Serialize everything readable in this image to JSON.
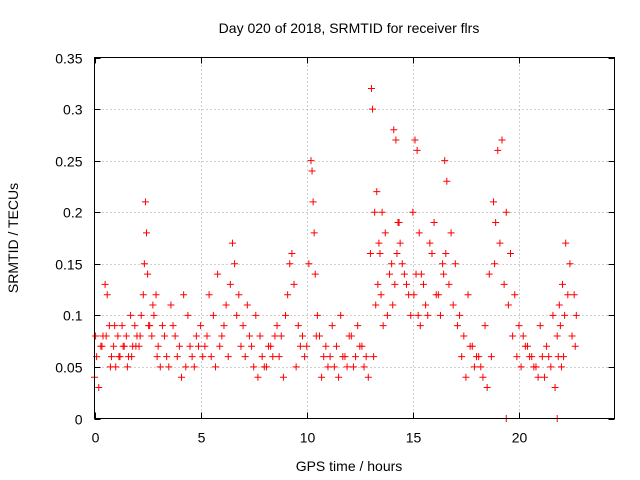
{
  "chart_data": {
    "type": "scatter",
    "title": "Day 020 of 2018, SRMTID for receiver flrs",
    "xlabel": "GPS time / hours",
    "ylabel": "SRMTID / TECUs",
    "xlim": [
      0,
      24.5
    ],
    "ylim": [
      0,
      0.35
    ],
    "x_ticks": [
      0,
      5,
      10,
      15,
      20
    ],
    "x_tick_labels": [
      "0",
      "5",
      "10",
      "15",
      "20"
    ],
    "y_ticks": [
      0,
      0.05,
      0.1,
      0.15,
      0.2,
      0.25,
      0.3,
      0.35
    ],
    "y_tick_labels": [
      "0",
      "0.05",
      "0.1",
      "0.15",
      "0.2",
      "0.25",
      "0.3",
      "0.35"
    ],
    "grid": true,
    "legend": "none",
    "marker": "+",
    "color": "#ff0000",
    "series": [
      {
        "values_note": "",
        "x": [
          0.0,
          0.1,
          0.2,
          0.3,
          0.4,
          0.5,
          0.6,
          0.7,
          0.8,
          0.9,
          1.0,
          1.1,
          1.2,
          1.3,
          1.4,
          1.5,
          1.6,
          1.7,
          1.8,
          1.9,
          2.0,
          2.1,
          2.2,
          2.3,
          2.35,
          2.4,
          2.45,
          2.5,
          2.6,
          2.7,
          2.8,
          2.9,
          3.0,
          3.2,
          3.4,
          3.6,
          3.8,
          4.0,
          4.2,
          4.4,
          4.6,
          4.8,
          5.0,
          5.2,
          5.4,
          5.6,
          5.8,
          6.0,
          6.2,
          6.4,
          6.5,
          6.6,
          6.7,
          6.8,
          7.0,
          7.2,
          7.4,
          7.6,
          7.8,
          8.0,
          8.2,
          8.4,
          8.6,
          8.8,
          9.0,
          9.1,
          9.2,
          9.3,
          9.4,
          9.6,
          9.8,
          10.0,
          10.1,
          10.2,
          10.25,
          10.3,
          10.35,
          10.4,
          10.5,
          10.6,
          10.8,
          11.0,
          11.2,
          11.4,
          11.6,
          11.8,
          12.0,
          12.2,
          12.4,
          12.6,
          12.8,
          12.9,
          13.0,
          13.05,
          13.1,
          13.2,
          13.3,
          13.4,
          13.5,
          13.6,
          13.8,
          14.0,
          14.1,
          14.2,
          14.3,
          14.4,
          14.6,
          14.8,
          15.0,
          15.1,
          15.2,
          15.3,
          15.4,
          15.6,
          15.8,
          16.0,
          16.2,
          16.4,
          16.5,
          16.6,
          16.8,
          17.0,
          17.2,
          17.4,
          17.6,
          17.8,
          18.0,
          18.2,
          18.4,
          18.6,
          18.8,
          18.9,
          19.0,
          19.2,
          19.4,
          19.6,
          19.8,
          20.0,
          20.2,
          20.4,
          20.6,
          20.8,
          21.0,
          21.2,
          21.4,
          21.6,
          21.8,
          21.9,
          22.0,
          22.1,
          22.2,
          22.4,
          22.6,
          22.7,
          0.05,
          0.35,
          0.55,
          0.75,
          0.95,
          1.15,
          1.35,
          1.55,
          1.75,
          1.95,
          2.15,
          2.55,
          2.75,
          2.95,
          3.1,
          3.3,
          3.5,
          3.7,
          3.9,
          4.1,
          4.3,
          4.5,
          4.7,
          4.9,
          5.1,
          5.3,
          5.5,
          5.7,
          5.9,
          6.1,
          6.3,
          6.9,
          7.1,
          7.3,
          7.5,
          7.7,
          7.9,
          8.1,
          8.3,
          8.5,
          8.7,
          8.9,
          9.5,
          9.7,
          9.9,
          10.45,
          10.7,
          10.9,
          11.1,
          11.3,
          11.5,
          11.7,
          11.9,
          12.1,
          12.3,
          12.5,
          12.7,
          13.15,
          13.25,
          13.35,
          13.45,
          13.55,
          13.7,
          13.9,
          14.05,
          14.15,
          14.25,
          14.35,
          14.5,
          14.7,
          14.9,
          15.05,
          15.15,
          15.25,
          15.35,
          15.5,
          15.7,
          15.9,
          16.1,
          16.3,
          16.45,
          16.55,
          16.7,
          16.9,
          17.1,
          17.3,
          17.5,
          17.7,
          17.9,
          18.1,
          18.3,
          18.5,
          18.7,
          18.85,
          19.1,
          19.3,
          19.5,
          19.7,
          19.9,
          20.1,
          20.3,
          20.5,
          20.7,
          20.9,
          21.1,
          21.3,
          21.5,
          21.7,
          21.85,
          21.95,
          22.05,
          22.15,
          22.3,
          22.5,
          22.65,
          19.4,
          21.8
        ],
        "y": [
          0.04,
          0.06,
          0.03,
          0.07,
          0.08,
          0.13,
          0.12,
          0.09,
          0.06,
          0.07,
          0.05,
          0.08,
          0.06,
          0.09,
          0.07,
          0.08,
          0.06,
          0.1,
          0.07,
          0.09,
          0.08,
          0.07,
          0.1,
          0.12,
          0.15,
          0.21,
          0.18,
          0.14,
          0.09,
          0.08,
          0.1,
          0.12,
          0.07,
          0.09,
          0.06,
          0.11,
          0.08,
          0.07,
          0.12,
          0.1,
          0.06,
          0.08,
          0.09,
          0.07,
          0.12,
          0.1,
          0.14,
          0.08,
          0.11,
          0.13,
          0.17,
          0.15,
          0.1,
          0.12,
          0.09,
          0.11,
          0.07,
          0.1,
          0.08,
          0.05,
          0.07,
          0.06,
          0.09,
          0.08,
          0.1,
          0.12,
          0.15,
          0.16,
          0.13,
          0.09,
          0.08,
          0.07,
          0.15,
          0.25,
          0.24,
          0.21,
          0.18,
          0.14,
          0.1,
          0.08,
          0.06,
          0.05,
          0.09,
          0.07,
          0.1,
          0.06,
          0.08,
          0.05,
          0.09,
          0.07,
          0.06,
          0.04,
          0.16,
          0.32,
          0.3,
          0.2,
          0.22,
          0.17,
          0.12,
          0.09,
          0.1,
          0.15,
          0.28,
          0.27,
          0.19,
          0.17,
          0.14,
          0.12,
          0.2,
          0.27,
          0.26,
          0.18,
          0.14,
          0.11,
          0.17,
          0.19,
          0.12,
          0.15,
          0.25,
          0.23,
          0.18,
          0.15,
          0.1,
          0.08,
          0.12,
          0.07,
          0.06,
          0.05,
          0.09,
          0.14,
          0.21,
          0.19,
          0.26,
          0.27,
          0.2,
          0.16,
          0.12,
          0.09,
          0.08,
          0.07,
          0.06,
          0.05,
          0.09,
          0.04,
          0.06,
          0.1,
          0.08,
          0.11,
          0.05,
          0.06,
          0.17,
          0.15,
          0.12,
          0.1,
          0.08,
          0.07,
          0.08,
          0.05,
          0.09,
          0.06,
          0.07,
          0.05,
          0.06,
          0.07,
          0.08,
          0.09,
          0.11,
          0.06,
          0.05,
          0.08,
          0.05,
          0.09,
          0.06,
          0.04,
          0.05,
          0.07,
          0.05,
          0.07,
          0.06,
          0.08,
          0.06,
          0.05,
          0.07,
          0.09,
          0.06,
          0.07,
          0.06,
          0.08,
          0.05,
          0.04,
          0.06,
          0.05,
          0.07,
          0.08,
          0.06,
          0.04,
          0.05,
          0.07,
          0.06,
          0.08,
          0.04,
          0.07,
          0.06,
          0.05,
          0.04,
          0.06,
          0.05,
          0.08,
          0.06,
          0.07,
          0.05,
          0.06,
          0.11,
          0.13,
          0.16,
          0.2,
          0.18,
          0.14,
          0.11,
          0.13,
          0.16,
          0.19,
          0.15,
          0.13,
          0.1,
          0.12,
          0.14,
          0.1,
          0.09,
          0.13,
          0.1,
          0.16,
          0.12,
          0.1,
          0.14,
          0.16,
          0.13,
          0.11,
          0.09,
          0.06,
          0.04,
          0.07,
          0.05,
          0.06,
          0.04,
          0.03,
          0.06,
          0.15,
          0.17,
          0.13,
          0.11,
          0.08,
          0.06,
          0.05,
          0.07,
          0.06,
          0.05,
          0.04,
          0.06,
          0.07,
          0.05,
          0.03,
          0.06,
          0.09,
          0.13,
          0.1,
          0.12,
          0.08,
          0.07,
          0.0,
          0.0
        ]
      }
    ]
  }
}
